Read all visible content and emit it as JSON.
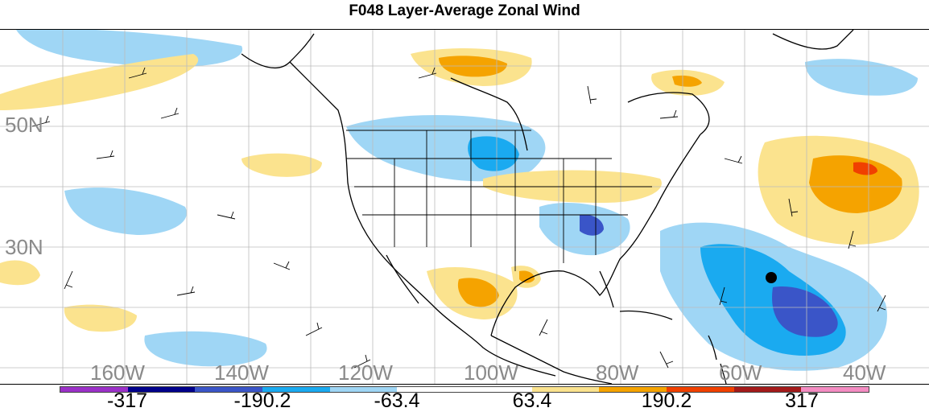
{
  "title": "F048 Layer-Average Zonal Wind",
  "latitude_labels": [
    "50N",
    "30N"
  ],
  "longitude_labels": [
    "160W",
    "140W",
    "120W",
    "100W",
    "80W",
    "60W",
    "40W"
  ],
  "colorbar": {
    "labels": [
      "-317",
      "-190.2",
      "-63.4",
      "63.4",
      "190.2",
      "317"
    ],
    "colors": [
      "#9b30c8",
      "#00008a",
      "#3a55c8",
      "#1aaaf0",
      "#9fd6f5",
      "#ffffff",
      "#ffffff",
      "#fbe38e",
      "#f5a300",
      "#f04000",
      "#a31a1a",
      "#f48cc2"
    ]
  },
  "colors": {
    "land_outline": "#000000",
    "grid": "#bbbbbb",
    "label_gray": "#8a8a8a",
    "marker": "#000000"
  }
}
